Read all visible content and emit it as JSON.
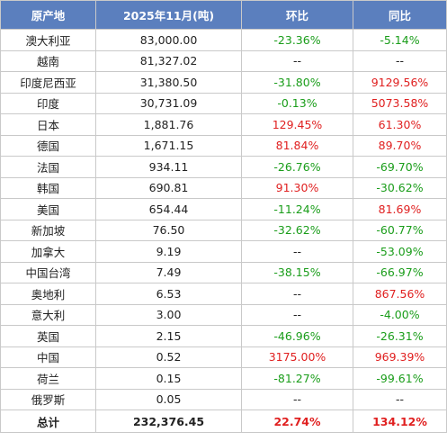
{
  "table": {
    "headers": [
      "原产地",
      "2025年11月(吨)",
      "环比",
      "同比"
    ],
    "rows": [
      {
        "origin": "澳大利亚",
        "volume": "83,000.00",
        "mom": "-23.36%",
        "yoy": "-5.14%"
      },
      {
        "origin": "越南",
        "volume": "81,327.02",
        "mom": "--",
        "yoy": "--"
      },
      {
        "origin": "印度尼西亚",
        "volume": "31,380.50",
        "mom": "-31.80%",
        "yoy": "9129.56%"
      },
      {
        "origin": "印度",
        "volume": "30,731.09",
        "mom": "-0.13%",
        "yoy": "5073.58%"
      },
      {
        "origin": "日本",
        "volume": "1,881.76",
        "mom": "129.45%",
        "yoy": "61.30%"
      },
      {
        "origin": "德国",
        "volume": "1,671.15",
        "mom": "81.84%",
        "yoy": "89.70%"
      },
      {
        "origin": "法国",
        "volume": "934.11",
        "mom": "-26.76%",
        "yoy": "-69.70%"
      },
      {
        "origin": "韩国",
        "volume": "690.81",
        "mom": "91.30%",
        "yoy": "-30.62%"
      },
      {
        "origin": "美国",
        "volume": "654.44",
        "mom": "-11.24%",
        "yoy": "81.69%"
      },
      {
        "origin": "新加坡",
        "volume": "76.50",
        "mom": "-32.62%",
        "yoy": "-60.77%"
      },
      {
        "origin": "加拿大",
        "volume": "9.19",
        "mom": "--",
        "yoy": "-53.09%"
      },
      {
        "origin": "中国台湾",
        "volume": "7.49",
        "mom": "-38.15%",
        "yoy": "-66.97%"
      },
      {
        "origin": "奥地利",
        "volume": "6.53",
        "mom": "--",
        "yoy": "867.56%"
      },
      {
        "origin": "意大利",
        "volume": "3.00",
        "mom": "--",
        "yoy": "-4.00%"
      },
      {
        "origin": "英国",
        "volume": "2.15",
        "mom": "-46.96%",
        "yoy": "-26.31%"
      },
      {
        "origin": "中国",
        "volume": "0.52",
        "mom": "3175.00%",
        "yoy": "969.39%"
      },
      {
        "origin": "荷兰",
        "volume": "0.15",
        "mom": "-81.27%",
        "yoy": "-99.61%"
      },
      {
        "origin": "俄罗斯",
        "volume": "0.05",
        "mom": "--",
        "yoy": "--"
      }
    ],
    "total": {
      "origin": "总计",
      "volume": "232,376.45",
      "mom": "22.74%",
      "yoy": "134.12%"
    }
  },
  "colors": {
    "header_bg": "#5b7fbe",
    "header_text": "#ffffff",
    "negative": "#1a9d1a",
    "positive": "#e02020",
    "border": "#c9c9c9"
  }
}
